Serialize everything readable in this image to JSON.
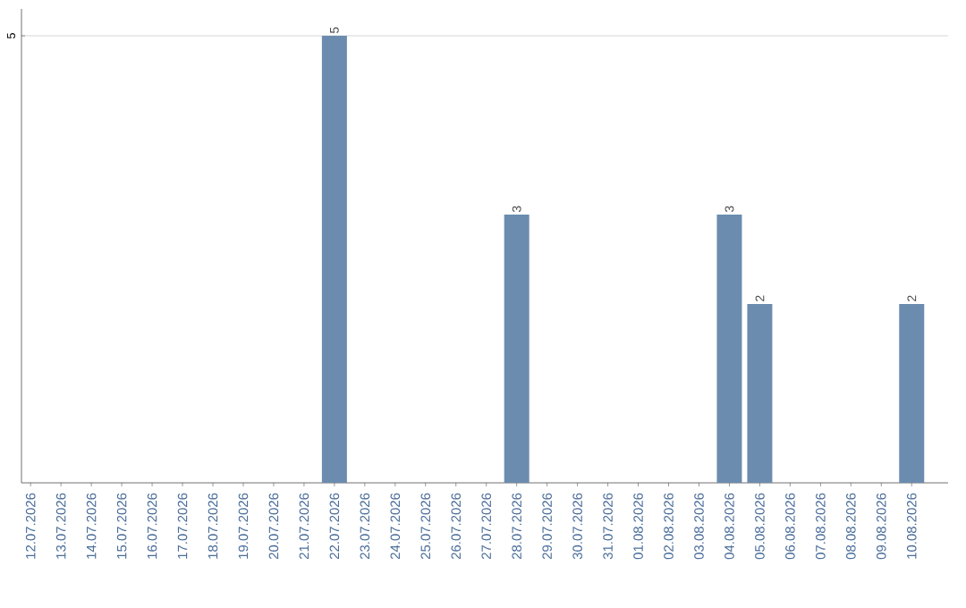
{
  "chart_data": {
    "type": "bar",
    "categories": [
      "12.07.2026",
      "13.07.2026",
      "14.07.2026",
      "15.07.2026",
      "16.07.2026",
      "17.07.2026",
      "18.07.2026",
      "19.07.2026",
      "20.07.2026",
      "21.07.2026",
      "22.07.2026",
      "23.07.2026",
      "24.07.2026",
      "25.07.2026",
      "26.07.2026",
      "27.07.2026",
      "28.07.2026",
      "29.07.2026",
      "30.07.2026",
      "31.07.2026",
      "01.08.2026",
      "02.08.2026",
      "03.08.2026",
      "04.08.2026",
      "05.08.2026",
      "06.08.2026",
      "07.08.2026",
      "08.08.2026",
      "09.08.2026",
      "10.08.2026"
    ],
    "values": [
      0,
      0,
      0,
      0,
      0,
      0,
      0,
      0,
      0,
      0,
      5,
      0,
      0,
      0,
      0,
      0,
      3,
      0,
      0,
      0,
      0,
      0,
      0,
      3,
      2,
      0,
      0,
      0,
      0,
      2
    ],
    "value_labels": [
      null,
      null,
      null,
      null,
      null,
      null,
      null,
      null,
      null,
      null,
      "5",
      null,
      null,
      null,
      null,
      null,
      "3",
      null,
      null,
      null,
      null,
      null,
      null,
      "3",
      "2",
      null,
      null,
      null,
      null,
      "2"
    ],
    "color": "#6b8cae",
    "ylim": [
      0,
      5.3
    ],
    "yticks": [
      5
    ],
    "grid": "y"
  }
}
